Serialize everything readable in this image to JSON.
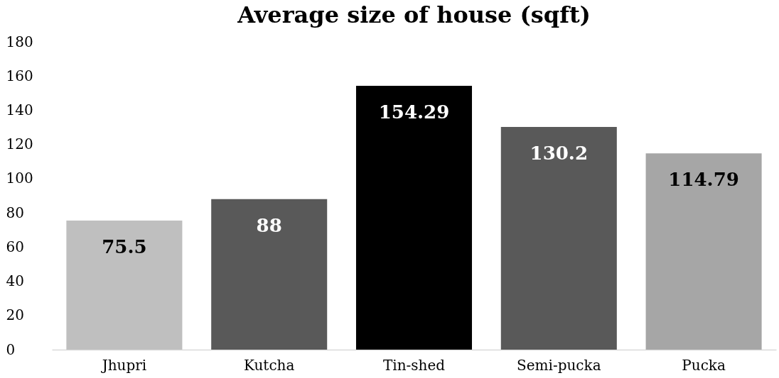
{
  "chart_data": {
    "type": "bar",
    "title": "Average size of house (sqft)",
    "categories": [
      "Jhupri",
      "Kutcha",
      "Tin-shed",
      "Semi-pucka",
      "Pucka"
    ],
    "values": [
      75.5,
      88,
      154.29,
      130.2,
      114.79
    ],
    "colors": [
      "#bfbfbf",
      "#595959",
      "#000000",
      "#595959",
      "#a6a6a6"
    ],
    "ylim": [
      0,
      180
    ],
    "yticks": [
      0,
      20,
      40,
      60,
      80,
      100,
      120,
      140,
      160,
      180
    ],
    "grid": false,
    "data_labels": true
  }
}
